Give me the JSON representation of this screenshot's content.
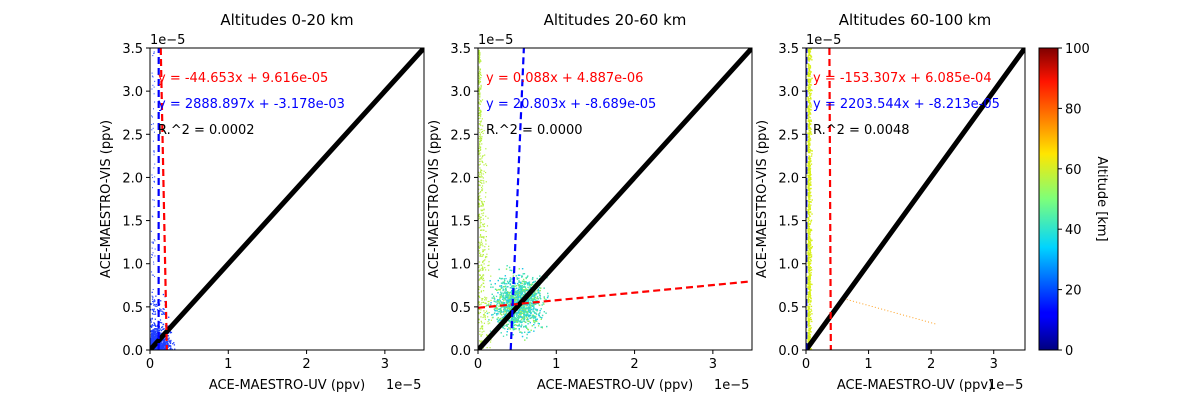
{
  "figure": {
    "colorbar": {
      "label": "Altitude [km]",
      "min": 0,
      "max": 100,
      "ticks": [
        "0",
        "20",
        "40",
        "60",
        "80",
        "100"
      ],
      "colormap": "jet"
    }
  },
  "chart_data": [
    {
      "type": "scatter",
      "title": "Altitudes 0-20 km",
      "xlabel": "ACE-MAESTRO-UV (ppv)",
      "ylabel": "ACE-MAESTRO-VIS (ppv)",
      "xlim": [
        0,
        3.5
      ],
      "ylim": [
        0,
        3.5
      ],
      "x_ticks": [
        "0",
        "1",
        "2",
        "3"
      ],
      "y_ticks": [
        "0.0",
        "0.5",
        "1.0",
        "1.5",
        "2.0",
        "2.5",
        "3.0",
        "3.5"
      ],
      "x_offset_label": "1e−5",
      "y_offset_label": "1e−5",
      "point_color": "#1f3fff",
      "annotations": [
        {
          "text": "y = -44.653x + 9.616e-05",
          "color": "#ff0000"
        },
        {
          "text": "y = 2888.897x + -3.178e-03",
          "color": "#0000ff"
        },
        {
          "text": "R.^2 = 0.0002",
          "color": "#000000"
        }
      ],
      "fit_lines": [
        {
          "color": "#ff0000",
          "dashed": true,
          "slope": -44.653,
          "intercept_ppv": 9.616e-05
        },
        {
          "color": "#0000ff",
          "dashed": true,
          "slope": 2888.897,
          "intercept_ppv": -0.003178
        }
      ],
      "one_to_one": true
    },
    {
      "type": "scatter",
      "title": "Altitudes 20-60 km",
      "xlabel": "ACE-MAESTRO-UV (ppv)",
      "ylabel": "ACE-MAESTRO-VIS (ppv)",
      "xlim": [
        0,
        3.5
      ],
      "ylim": [
        0,
        3.5
      ],
      "x_ticks": [
        "0",
        "1",
        "2",
        "3"
      ],
      "y_ticks": [
        "0.0",
        "0.5",
        "1.0",
        "1.5",
        "2.0",
        "2.5",
        "3.0",
        "3.5"
      ],
      "x_offset_label": "1e−5",
      "y_offset_label": "1e−5",
      "point_color": "#66e08a",
      "annotations": [
        {
          "text": "y = 0.088x + 4.887e-06",
          "color": "#ff0000"
        },
        {
          "text": "y = 20.803x + -8.689e-05",
          "color": "#0000ff"
        },
        {
          "text": "R.^2 = 0.0000",
          "color": "#000000"
        }
      ],
      "fit_lines": [
        {
          "color": "#ff0000",
          "dashed": true,
          "slope": 0.088,
          "intercept_ppv": 4.887e-06
        },
        {
          "color": "#0000ff",
          "dashed": true,
          "slope": 20.803,
          "intercept_ppv": -8.689e-05
        }
      ],
      "one_to_one": true
    },
    {
      "type": "scatter",
      "title": "Altitudes 60-100 km",
      "xlabel": "ACE-MAESTRO-UV (ppv)",
      "ylabel": "ACE-MAESTRO-VIS (ppv)",
      "xlim": [
        0,
        3.5
      ],
      "ylim": [
        0,
        3.5
      ],
      "x_ticks": [
        "0",
        "1",
        "2",
        "3"
      ],
      "y_ticks": [
        "0.0",
        "0.5",
        "1.0",
        "1.5",
        "2.0",
        "2.5",
        "3.0",
        "3.5"
      ],
      "x_offset_label": "1e−5",
      "y_offset_label": "1e−5",
      "point_color": "#d8f018",
      "annotations": [
        {
          "text": "y = -153.307x + 6.085e-04",
          "color": "#ff0000"
        },
        {
          "text": "y = 2203.544x + -8.213e-05",
          "color": "#0000ff"
        },
        {
          "text": "R.^2 = 0.0048",
          "color": "#000000"
        }
      ],
      "fit_lines": [
        {
          "color": "#ff0000",
          "dashed": true,
          "slope": -153.307,
          "intercept_ppv": 0.0006085
        },
        {
          "color": "#0000ff",
          "dashed": true,
          "slope": 2203.544,
          "intercept_ppv": -8.213e-05
        }
      ],
      "one_to_one": true
    }
  ]
}
